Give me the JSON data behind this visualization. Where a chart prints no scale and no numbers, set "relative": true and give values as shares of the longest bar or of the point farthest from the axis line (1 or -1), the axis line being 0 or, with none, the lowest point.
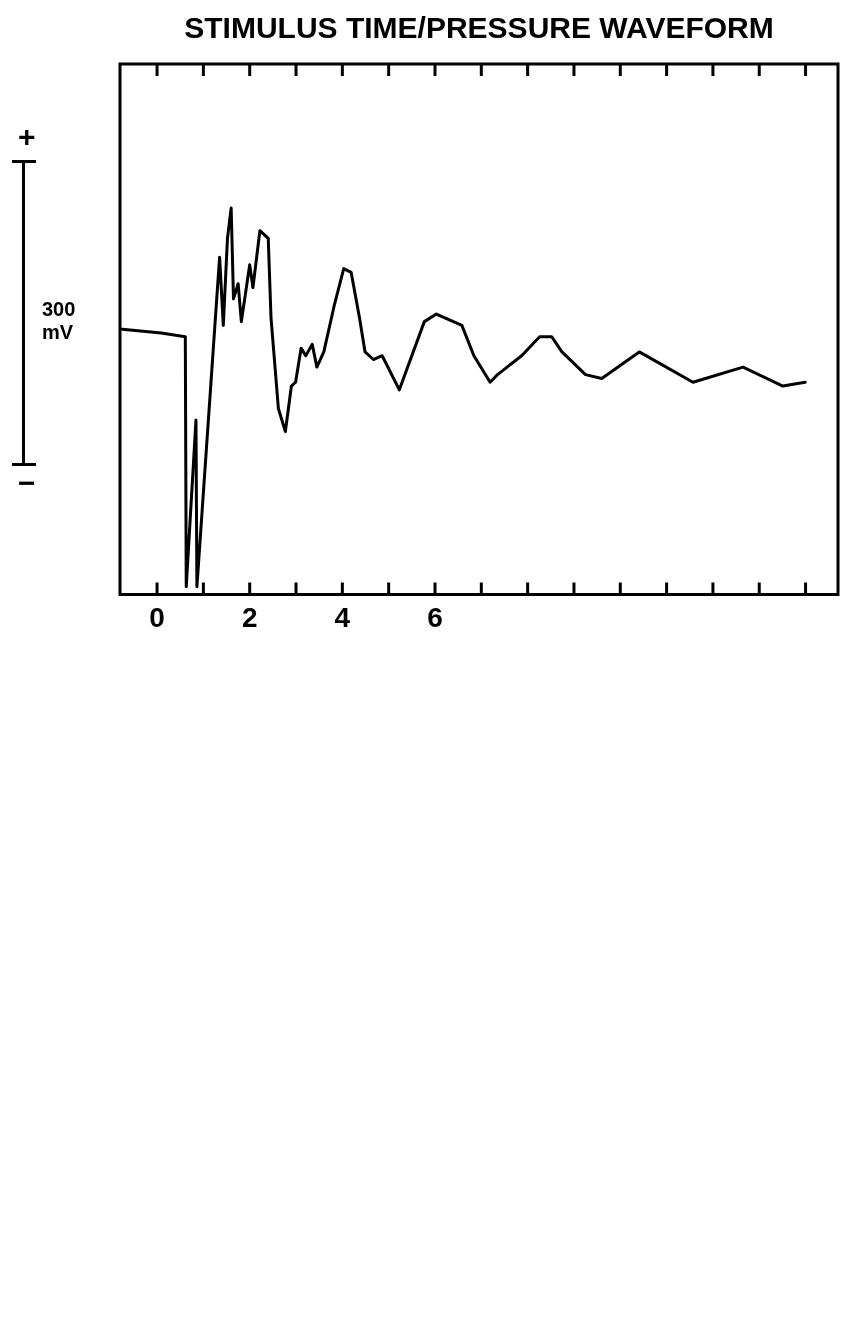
{
  "chart_data": {
    "type": "line",
    "title": "STIMULUS TIME/PRESSURE WAVEFORM",
    "relative": true,
    "x": [
      -0.75,
      0.09,
      0.61,
      0.63,
      0.84,
      0.86,
      1.35,
      1.43,
      1.52,
      1.6,
      1.65,
      1.75,
      1.82,
      2.0,
      2.07,
      2.22,
      2.4,
      2.46,
      2.62,
      2.77,
      2.9,
      2.99,
      3.11,
      3.21,
      3.35,
      3.45,
      3.6,
      3.82,
      4.03,
      4.19,
      4.37,
      4.49,
      4.67,
      4.86,
      5.23,
      5.77,
      6.03,
      6.58,
      6.84,
      7.19,
      7.35,
      7.87,
      8.26,
      8.52,
      8.74,
      9.25,
      9.6,
      10.41,
      11.57,
      12.65,
      13.51,
      13.99
    ],
    "values": [
      0.68,
      0.67,
      0.66,
      0.0,
      0.44,
      0.0,
      0.87,
      0.69,
      0.92,
      1.0,
      0.76,
      0.8,
      0.7,
      0.85,
      0.79,
      0.94,
      0.92,
      0.71,
      0.47,
      0.41,
      0.53,
      0.54,
      0.63,
      0.61,
      0.64,
      0.58,
      0.62,
      0.74,
      0.84,
      0.83,
      0.71,
      0.62,
      0.6,
      0.61,
      0.52,
      0.7,
      0.72,
      0.69,
      0.61,
      0.54,
      0.56,
      0.61,
      0.66,
      0.66,
      0.62,
      0.56,
      0.55,
      0.62,
      0.54,
      0.58,
      0.53,
      0.54
    ],
    "color": "#000000",
    "line_style": "solid",
    "marker": "none",
    "grid": false,
    "legend": false,
    "xlim": [
      -0.8,
      14.7
    ],
    "xticks": [
      0,
      {
        "value": 1,
        "label": null
      },
      2,
      {
        "value": 3,
        "label": null
      },
      4,
      {
        "value": 5,
        "label": null
      },
      6,
      {
        "value": 7,
        "label": null
      },
      {
        "value": 8,
        "label": null
      },
      {
        "value": 9,
        "label": null
      },
      {
        "value": 10,
        "label": null
      },
      {
        "value": 11,
        "label": null
      },
      {
        "value": 12,
        "label": null
      },
      {
        "value": 13,
        "label": null
      },
      {
        "value": 14,
        "label": null
      }
    ],
    "annotations": [
      "+",
      "300 mV",
      "−"
    ]
  }
}
